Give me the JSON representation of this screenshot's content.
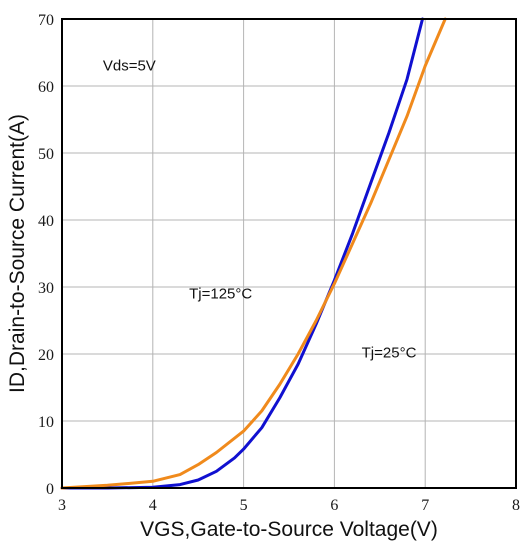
{
  "chart_data": {
    "type": "line",
    "title": "",
    "xlabel": "VGS,Gate-to-Source Voltage(V)",
    "ylabel": "ID,Drain-to-Source Current(A)",
    "xlim": [
      3,
      8
    ],
    "ylim": [
      0,
      70
    ],
    "xticks": [
      "3",
      "4",
      "5",
      "6",
      "7",
      "8"
    ],
    "yticks": [
      "0",
      "10",
      "20",
      "30",
      "40",
      "50",
      "60",
      "70"
    ],
    "grid": true,
    "legend": "none",
    "series": [
      {
        "name": "Tj=25°C",
        "color": "#1010d0",
        "points": [
          [
            3.0,
            0.0
          ],
          [
            3.5,
            0.0
          ],
          [
            4.0,
            0.1
          ],
          [
            4.3,
            0.5
          ],
          [
            4.5,
            1.2
          ],
          [
            4.7,
            2.5
          ],
          [
            4.9,
            4.5
          ],
          [
            5.0,
            5.8
          ],
          [
            5.2,
            9.0
          ],
          [
            5.4,
            13.5
          ],
          [
            5.6,
            18.5
          ],
          [
            5.8,
            24.5
          ],
          [
            6.0,
            31.0
          ],
          [
            6.2,
            38.0
          ],
          [
            6.4,
            45.5
          ],
          [
            6.6,
            53.0
          ],
          [
            6.8,
            61.0
          ],
          [
            6.97,
            70.0
          ]
        ]
      },
      {
        "name": "Tj=125°C",
        "color": "#f08a1c",
        "points": [
          [
            3.0,
            0.0
          ],
          [
            3.5,
            0.4
          ],
          [
            4.0,
            1.0
          ],
          [
            4.3,
            2.0
          ],
          [
            4.5,
            3.5
          ],
          [
            4.7,
            5.3
          ],
          [
            5.0,
            8.5
          ],
          [
            5.2,
            11.5
          ],
          [
            5.4,
            15.5
          ],
          [
            5.6,
            20.0
          ],
          [
            5.8,
            25.0
          ],
          [
            6.0,
            30.5
          ],
          [
            6.2,
            36.5
          ],
          [
            6.4,
            42.5
          ],
          [
            6.6,
            49.0
          ],
          [
            6.8,
            55.5
          ],
          [
            7.0,
            63.0
          ],
          [
            7.22,
            70.0
          ]
        ]
      }
    ],
    "annotations": [
      {
        "text": "Vds=5V",
        "x": 3.45,
        "y": 62.3
      },
      {
        "text": "Tj=125°C",
        "x": 4.4,
        "y": 28.3
      },
      {
        "text": "Tj=25°C",
        "x": 6.3,
        "y": 19.5
      }
    ]
  }
}
